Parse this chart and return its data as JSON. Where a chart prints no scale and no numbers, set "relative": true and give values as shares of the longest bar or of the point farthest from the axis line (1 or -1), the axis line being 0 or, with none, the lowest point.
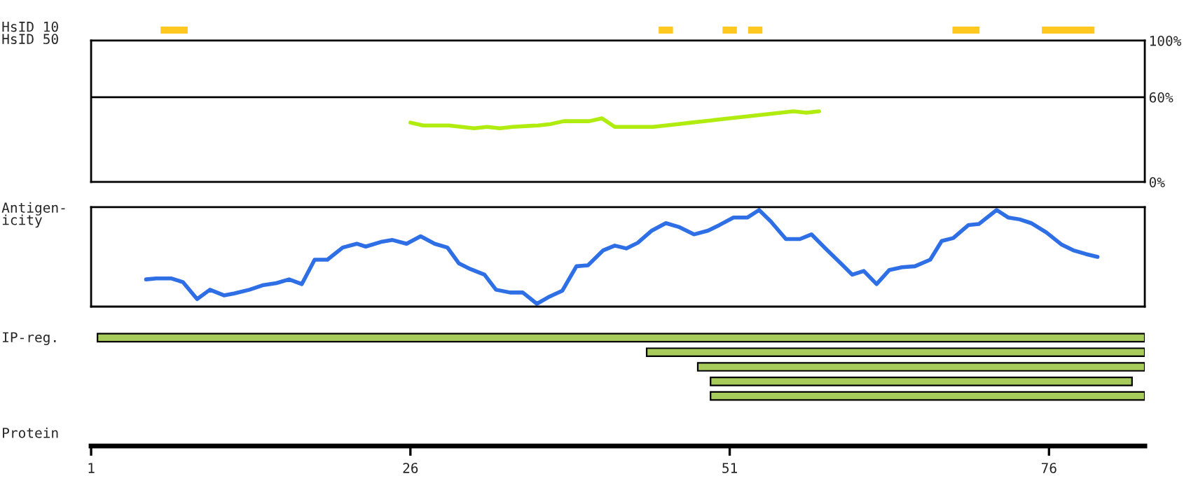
{
  "chart_data": [
    {
      "type": "bar",
      "orientation": "horizontal",
      "ylabel": "HsID 10",
      "categories": [
        null
      ],
      "xlim": [
        1,
        83.5
      ],
      "tick_labels": false,
      "series": [
        {
          "color": "#ffc820",
          "base": [
            6.5
          ],
          "values": [
            2
          ]
        },
        {
          "color": "#ffc820",
          "base": [
            45.5
          ],
          "values": [
            1
          ]
        },
        {
          "color": "#ffc820",
          "base": [
            50.5
          ],
          "values": [
            1
          ]
        },
        {
          "color": "#ffc820",
          "base": [
            52.5
          ],
          "values": [
            1
          ]
        },
        {
          "color": "#ffc820",
          "base": [
            68.5
          ],
          "values": [
            2
          ]
        },
        {
          "color": "#ffc820",
          "base": [
            75.5
          ],
          "values": [
            4
          ]
        }
      ]
    },
    {
      "type": "line",
      "ylabel": "HsID 50",
      "xlim": [
        1,
        83.5
      ],
      "ylim": [
        0,
        100
      ],
      "yticks": [
        {
          "value": 0,
          "label": "0%"
        },
        {
          "value": 60,
          "label": "60%"
        },
        {
          "value": 100,
          "label": "100%"
        }
      ],
      "tick_labels": "y",
      "ref_lines": [
        {
          "axis": "y",
          "value": 60,
          "color": "#000000"
        }
      ],
      "series": [
        {
          "color": "#b0ec10",
          "x": [
            26,
            27,
            29,
            30,
            31,
            32,
            33,
            34,
            36,
            37,
            38,
            40,
            41,
            42,
            45,
            47,
            48,
            50,
            52,
            54,
            56,
            57,
            58
          ],
          "values": [
            42,
            40,
            40,
            39,
            38,
            39,
            38,
            39,
            40,
            41,
            43,
            43,
            45,
            39,
            39,
            41,
            42,
            44,
            46,
            48,
            50,
            49,
            50
          ]
        }
      ]
    },
    {
      "type": "line",
      "ylabel": "Antigen-\nicity",
      "xlim": [
        1,
        83.5
      ],
      "relative": true,
      "tick_labels": false,
      "series": [
        {
          "color": "#2f6fe6",
          "x": [
            5.3,
            6.1,
            7.3,
            8.2,
            9.3,
            10.3,
            11.4,
            12.2,
            13.4,
            14.5,
            15.5,
            16.5,
            17.5,
            18.5,
            19.5,
            20.7,
            21.8,
            22.5,
            23.7,
            24.6,
            25.7,
            26.8,
            27.9,
            28.9,
            29.8,
            30.7,
            31.8,
            32.7,
            33.8,
            34.8,
            35.9,
            36.8,
            37.9,
            39.0,
            39.9,
            41.1,
            42.0,
            42.9,
            43.8,
            44.9,
            46.0,
            47.0,
            48.2,
            49.3,
            50.2,
            51.3,
            52.4,
            53.3,
            54.2,
            55.4,
            56.5,
            57.4,
            58.5,
            59.7,
            60.6,
            61.5,
            62.5,
            63.5,
            64.5,
            65.5,
            66.7,
            67.6,
            68.5,
            69.7,
            70.5,
            71.9,
            72.8,
            73.7,
            74.6,
            75.8,
            77.0,
            77.9,
            78.9,
            79.8
          ],
          "values": [
            0.26,
            0.27,
            0.27,
            0.23,
            0.05,
            0.15,
            0.09,
            0.11,
            0.15,
            0.2,
            0.22,
            0.26,
            0.21,
            0.47,
            0.47,
            0.6,
            0.64,
            0.61,
            0.66,
            0.68,
            0.64,
            0.72,
            0.64,
            0.6,
            0.43,
            0.37,
            0.31,
            0.15,
            0.12,
            0.12,
            0,
            0.07,
            0.14,
            0.4,
            0.41,
            0.57,
            0.62,
            0.59,
            0.65,
            0.78,
            0.86,
            0.82,
            0.74,
            0.78,
            0.84,
            0.92,
            0.92,
            1,
            0.88,
            0.69,
            0.69,
            0.74,
            0.59,
            0.43,
            0.31,
            0.35,
            0.21,
            0.36,
            0.39,
            0.4,
            0.47,
            0.67,
            0.7,
            0.84,
            0.85,
            1,
            0.92,
            0.9,
            0.86,
            0.76,
            0.63,
            0.57,
            0.53,
            0.5
          ]
        }
      ]
    },
    {
      "type": "bar",
      "orientation": "horizontal",
      "ylabel": "IP-reg.",
      "xlabel": "Protein",
      "categories": [
        null,
        null,
        null,
        null,
        null
      ],
      "xlim": [
        1,
        83.5
      ],
      "xticks": [
        1,
        26,
        51,
        76
      ],
      "tick_labels": "x",
      "series": [
        {
          "color": "#a8cc5c",
          "base": [
            1.5,
            44.5,
            48.5,
            49.5,
            49.5
          ],
          "values": [
            82,
            39,
            35,
            33,
            34
          ]
        }
      ]
    }
  ]
}
